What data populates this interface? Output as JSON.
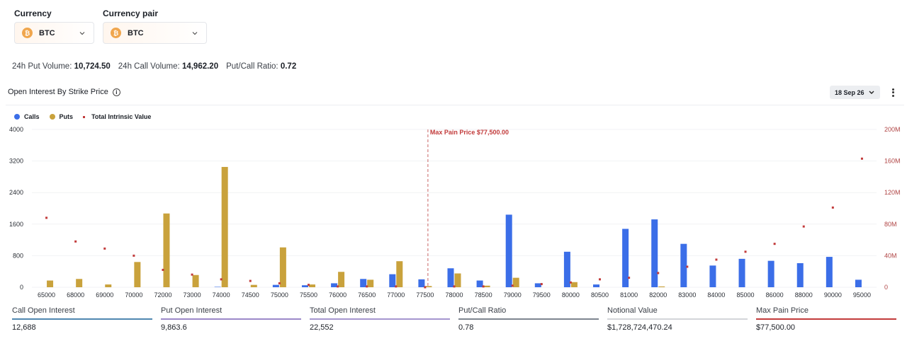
{
  "currency": {
    "label": "Currency",
    "value": "BTC",
    "icon": "bitcoin-icon"
  },
  "currency_pair": {
    "label": "Currency pair",
    "value": "BTC",
    "icon": "bitcoin-icon"
  },
  "stats": {
    "put_volume_label": "24h Put Volume:",
    "put_volume": "10,724.50",
    "call_volume_label": "24h Call Volume:",
    "call_volume": "14,962.20",
    "ratio_label": "Put/Call Ratio:",
    "ratio": "0.72"
  },
  "section": {
    "title": "Open Interest By Strike Price",
    "date": "18 Sep 26"
  },
  "colors": {
    "calls": "#3b6ee8",
    "puts": "#c9a23c",
    "intrinsic": "#c23b3b"
  },
  "chart_data": {
    "type": "bar",
    "legend": [
      "Calls",
      "Puts",
      "Total Intrinsic Value"
    ],
    "categories": [
      "65000",
      "68000",
      "69000",
      "70000",
      "72000",
      "73000",
      "74000",
      "74500",
      "75000",
      "75500",
      "76000",
      "76500",
      "77000",
      "77500",
      "78000",
      "78500",
      "79000",
      "79500",
      "80000",
      "80500",
      "81000",
      "82000",
      "83000",
      "84000",
      "85000",
      "86000",
      "88000",
      "90000",
      "95000"
    ],
    "series": [
      {
        "name": "Calls",
        "values": [
          0,
          0,
          0,
          0,
          0,
          0,
          10,
          0,
          60,
          50,
          100,
          210,
          330,
          200,
          480,
          170,
          1840,
          100,
          900,
          70,
          1480,
          1720,
          1100,
          550,
          720,
          670,
          610,
          770,
          190
        ]
      },
      {
        "name": "Puts",
        "values": [
          170,
          210,
          70,
          640,
          1870,
          310,
          3050,
          60,
          1010,
          70,
          390,
          190,
          660,
          30,
          350,
          40,
          240,
          0,
          130,
          0,
          0,
          20,
          0,
          0,
          0,
          0,
          0,
          0,
          0
        ]
      },
      {
        "name": "Total Intrinsic Value",
        "values": [
          88000000,
          58000000,
          49000000,
          40000000,
          22000000,
          16000000,
          10000000,
          8000000,
          5000000,
          3000000,
          1000000,
          1000000,
          1000000,
          0,
          1000000,
          1000000,
          2000000,
          4000000,
          6000000,
          10000000,
          12000000,
          18000000,
          26000000,
          35000000,
          45000000,
          55000000,
          77000000,
          101000000,
          163000000
        ]
      }
    ],
    "ylim": [
      0,
      4000
    ],
    "yticks": [
      "0",
      "800",
      "1600",
      "2400",
      "3200",
      "4000"
    ],
    "y2lim": [
      0,
      200000000
    ],
    "y2ticks": [
      "0",
      "40M",
      "80M",
      "120M",
      "160M",
      "200M"
    ],
    "annotation": {
      "category": "77500",
      "label": "Max Pain Price $77,500.00"
    }
  },
  "metrics": [
    {
      "label": "Call Open Interest",
      "value": "12,688",
      "color": "#4f87b0"
    },
    {
      "label": "Put Open Interest",
      "value": "9,863.6",
      "color": "#9c88c9"
    },
    {
      "label": "Total Open Interest",
      "value": "22,552",
      "color": "#a596cf"
    },
    {
      "label": "Put/Call Ratio",
      "value": "0.78",
      "color": "#7e8590"
    },
    {
      "label": "Notional Value",
      "value": "$1,728,724,470.24",
      "color": "#d3d5d9"
    },
    {
      "label": "Max Pain Price",
      "value": "$77,500.00",
      "color": "#c23b3b"
    }
  ]
}
